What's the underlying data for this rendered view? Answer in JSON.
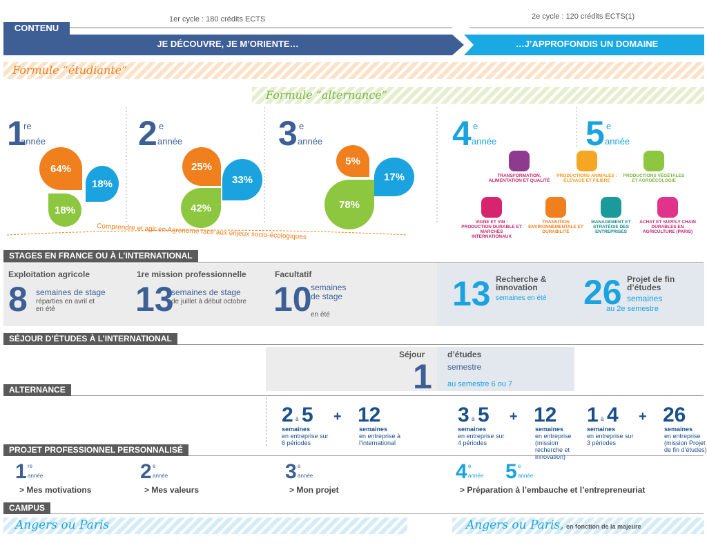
{
  "header": {
    "cycle1": "1er cycle : 180 crédits ECTS",
    "cycle2": "2e cycle : 120 crédits ECTS(1)",
    "label": "CONTENU",
    "phase1": "JE DÉCOUVRE, JE M’ORIENTE…",
    "phase2": "…J’APPROFONDIS UN DOMAINE"
  },
  "formulas": {
    "student": "Formule “étudiante”",
    "work_study": "Formule “alternance”"
  },
  "years": [
    {
      "number": 1,
      "suffix": "re",
      "label": "année",
      "shares": [
        "64%",
        "18%",
        "18%"
      ]
    },
    {
      "number": 2,
      "suffix": "e",
      "label": "année",
      "shares": [
        "25%",
        "33%",
        "42%"
      ]
    },
    {
      "number": 3,
      "suffix": "e",
      "label": "année",
      "shares": [
        "5%",
        "17%",
        "78%"
      ]
    },
    {
      "number": 4,
      "suffix": "e",
      "label": "année"
    },
    {
      "number": 5,
      "suffix": "e",
      "label": "année"
    }
  ],
  "majors": [
    "TRANSFORMATION, ALIMENTATION ET QUALITÉ",
    "PRODUCTIONS ANIMALES : ÉLEVAGE ET FILIÈRE",
    "PRODUCTIONS VÉGÉTALES ET AGROÉCOLOGIE",
    "VIGNE ET VIN : PRODUCTION DURABLE ET MARCHÉS INTERNATIONAUX",
    "TRANSITION ENVIRONNEMENTALE ET DURABILITÉ",
    "MANAGEMENT ET STRATÉGIE DES ENTREPRISES",
    "ACHAT ET SUPPLY CHAIN DURABLES EN AGRICULTURE (PARIS)"
  ],
  "arc": "Comprendre et agir en Agronome face aux enjeux socio-écologiques",
  "internships": {
    "title": "STAGES EN FRANCE OU À L’INTERNATIONAL",
    "items": [
      {
        "heading": "Exploitation agricole",
        "number": 8,
        "unit": "semaines de stage",
        "detail": "réparties en avril et en été"
      },
      {
        "heading": "1re mission professionnelle",
        "number": 13,
        "unit": "semaines de stage",
        "detail": "de juillet à début octobre"
      },
      {
        "heading": "Facultatif",
        "number": 10,
        "unit": "semaines de stage",
        "detail": "en été"
      },
      {
        "heading": "Recherche & innovation",
        "number": 13,
        "unit": "semaines en été"
      },
      {
        "heading": "Projet de fin d’études",
        "number": 26,
        "unit": "semaines",
        "detail": "au 2e semestre"
      }
    ]
  },
  "study_abroad": {
    "title": "SÉJOUR D’ÉTUDES À L’INTERNATIONAL",
    "prefix": "Séjour",
    "number": 1,
    "suffix": "d’études",
    "unit": "semestre",
    "detail": "au semestre 6 ou 7"
  },
  "work_study": {
    "title": "ALTERNANCE",
    "groups": [
      {
        "min": 2,
        "to": "à",
        "max": 5,
        "plus": "+",
        "extra": 12,
        "unit1": "semaines",
        "detail1": "en entreprise sur 6 périodes",
        "unit2": "semaines",
        "detail2": "en entreprise à l’international"
      },
      {
        "min": 3,
        "to": "à",
        "max": 5,
        "plus": "+",
        "extra": 12,
        "unit1": "semaines",
        "detail1": "en entreprise sur 4 périodes",
        "unit2": "semaines",
        "detail2": "en entreprise (mission recherche et innovation)"
      },
      {
        "min": 1,
        "to": "à",
        "max": 4,
        "plus": "+",
        "extra": 26,
        "unit1": "semaines",
        "detail1": "en entreprise sur 3 périodes",
        "unit2": "semaines",
        "detail2": "en entreprise (mission Projet de fin d’études)"
      }
    ]
  },
  "ppp": {
    "title": "PROJET PROFESSIONNEL PERSONNALISÉ",
    "items": [
      {
        "number": 1,
        "suffix": "re",
        "label": "année",
        "text": "> Mes motivations"
      },
      {
        "number": 2,
        "suffix": "e",
        "label": "année",
        "text": "> Mes valeurs"
      },
      {
        "number": 3,
        "suffix": "e",
        "label": "année",
        "text": "> Mon projet"
      },
      {
        "number": 4,
        "suffix": "e",
        "label": "année",
        "number2": 5,
        "suffix2": "e",
        "label2": "année",
        "text": "> Préparation à l’embauche et l’entrepreneuriat"
      }
    ]
  },
  "campus": {
    "title": "CAMPUS",
    "left": "Angers ou Paris",
    "right": "Angers ou Paris,",
    "right_note": "en fonction de la majeure"
  }
}
